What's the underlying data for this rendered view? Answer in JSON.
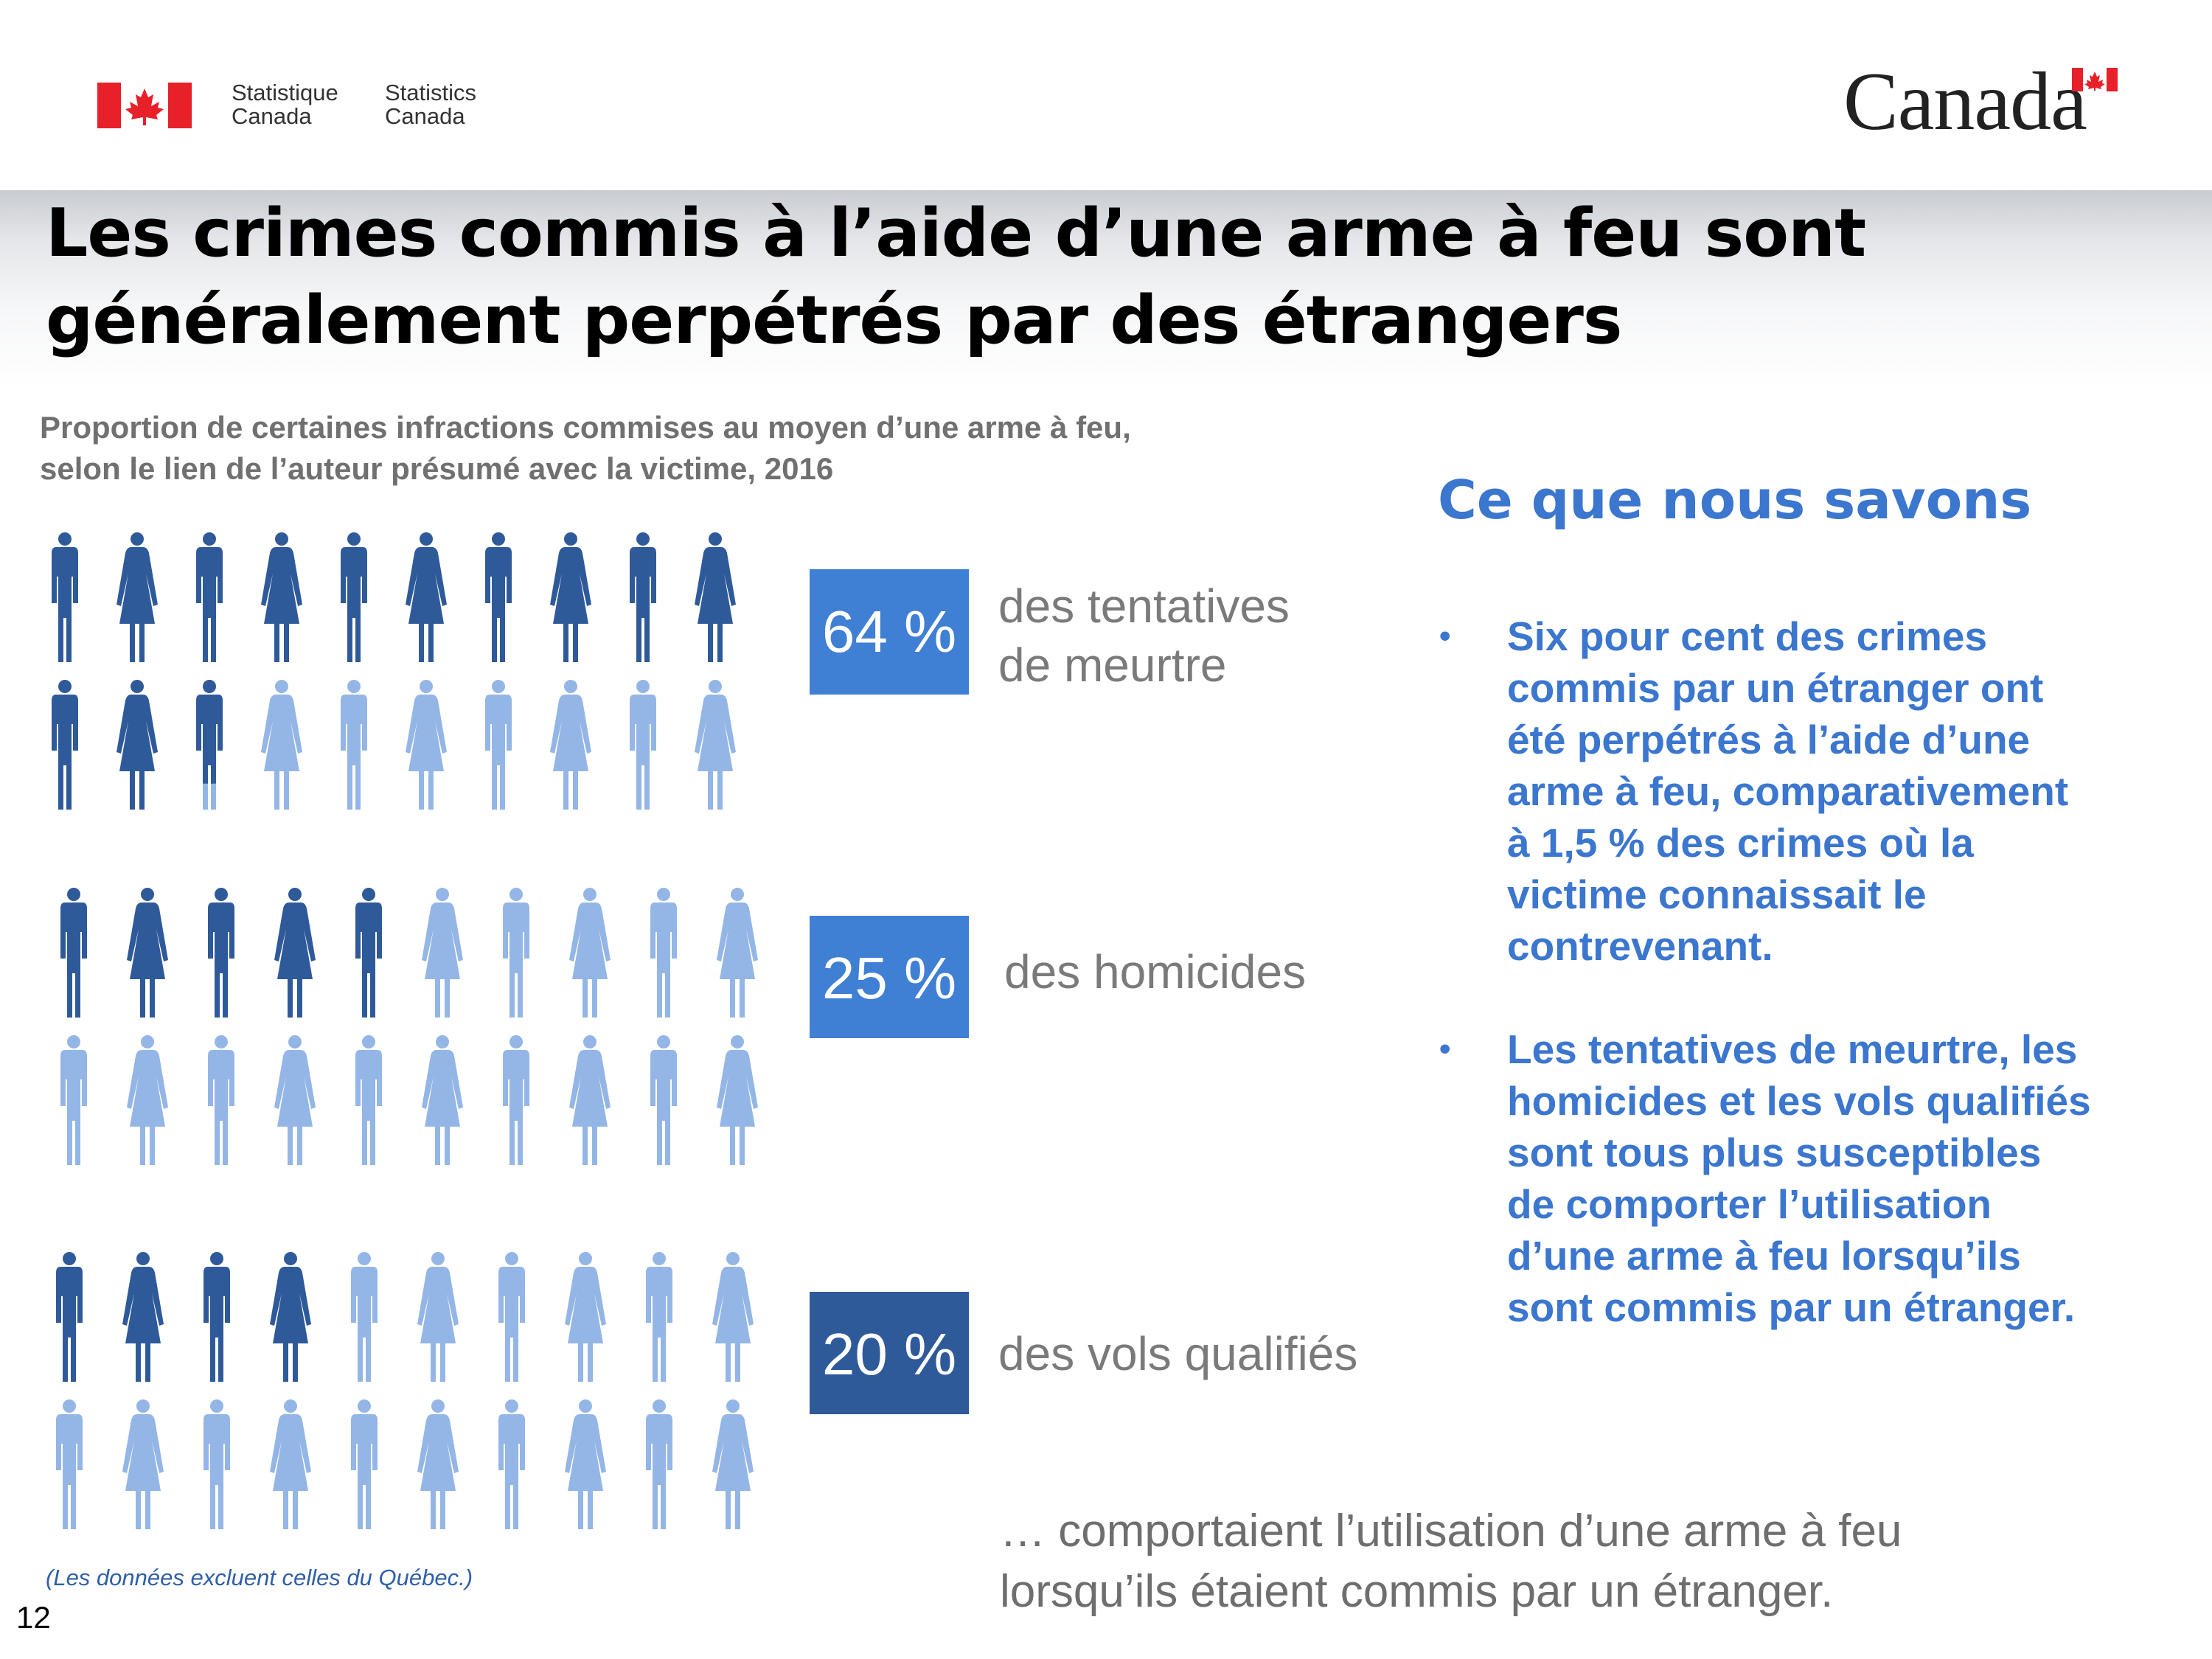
{
  "header": {
    "org_fr_1": "Statistique",
    "org_fr_2": "Canada",
    "org_en_1": "Statistics",
    "org_en_2": "Canada",
    "wordmark": "Canada"
  },
  "title_line1": "Les crimes commis à l’aide d’une arme à feu sont",
  "title_line2": "généralement perpétrés par des étrangers",
  "subtitle_line1": "Proportion de certaines infractions commises au moyen d’une arme à feu,",
  "subtitle_line2": "selon le lien de l’auteur présumé avec la victime, 2016",
  "colors": {
    "dark": "#2f5a9a",
    "light": "#94b6e6",
    "box1": "#3f7fd4",
    "box2": "#3f7fd4",
    "box3": "#2f5a9a",
    "accent": "#3b76cf"
  },
  "chart_data": {
    "type": "pictograph",
    "icons_per_group": 20,
    "categories": [
      "des tentatives de meurtre",
      "des homicides",
      "des vols qualifiés"
    ],
    "values": [
      64,
      25,
      20
    ],
    "value_labels": [
      "64 %",
      "25 %",
      "20 %"
    ],
    "label_lines": [
      [
        "des tentatives",
        "de meurtre"
      ],
      [
        "des homicides"
      ],
      [
        "des vols qualifiés"
      ]
    ]
  },
  "conclusion_line1": "… comportaient l’utilisation d’une arme à feu",
  "conclusion_line2": "lorsqu’ils étaient commis par un étranger.",
  "note": "(Les données excluent celles du Québec.)",
  "page_number": "12",
  "panel": {
    "heading": "Ce que nous savons",
    "bullet_char": "•",
    "bullet1": [
      "Six pour cent des crimes",
      "commis par un étranger ont",
      "été perpétrés à l’aide d’une",
      "arme à feu, comparativement",
      "à 1,5 % des crimes où la",
      "victime connaissait le",
      "contrevenant."
    ],
    "bullet2": [
      "Les tentatives de meurtre, les",
      "homicides et les vols qualifiés",
      "sont tous plus susceptibles",
      "de comporter l’utilisation",
      "d’une arme à feu lorsqu’ils",
      "sont commis par un étranger."
    ]
  }
}
